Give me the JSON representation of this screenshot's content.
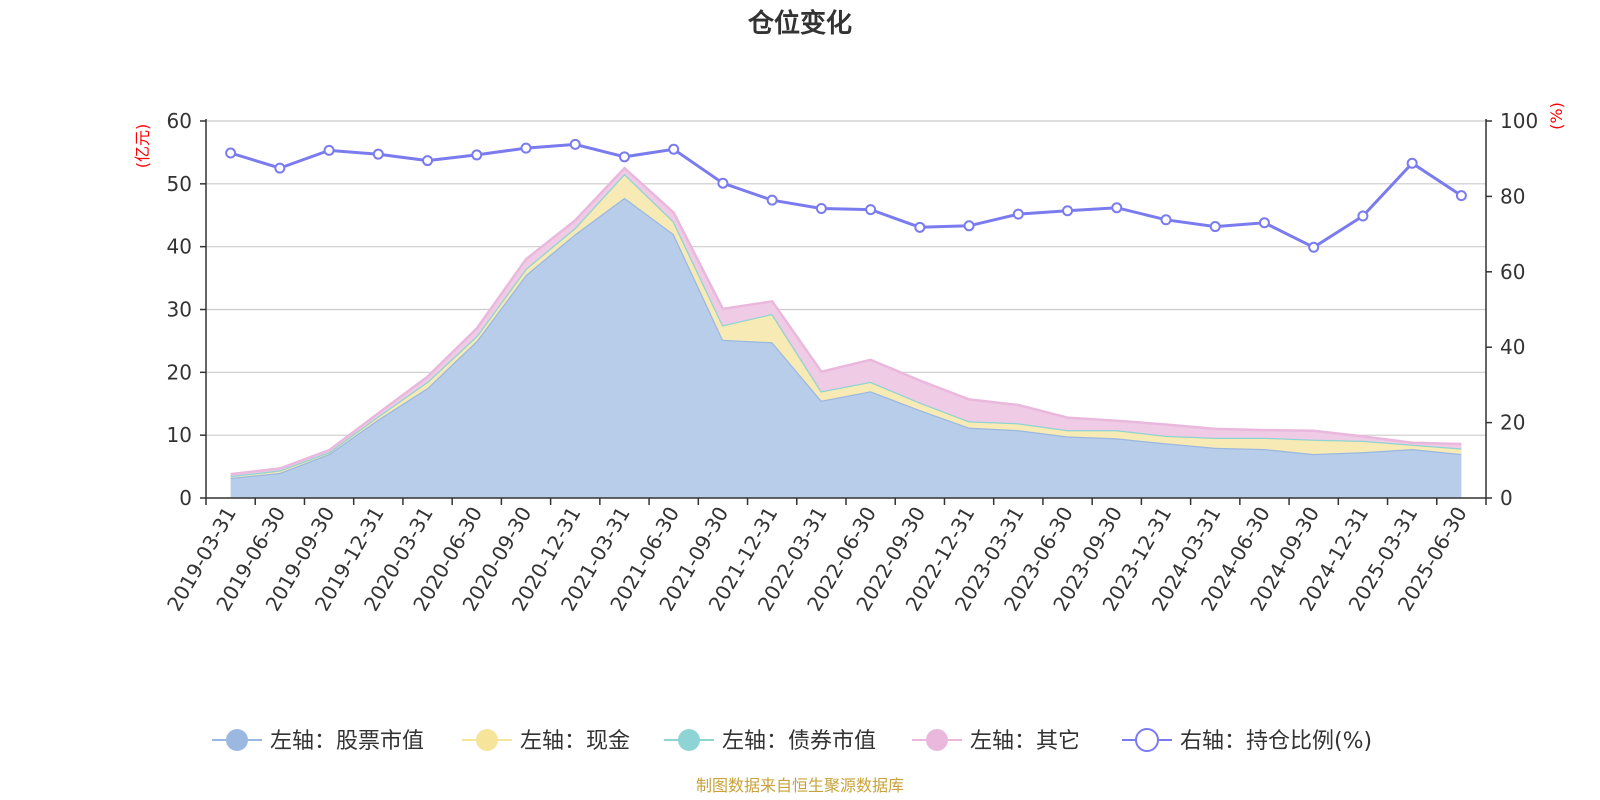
{
  "chart_data": {
    "type": "area",
    "title": "仓位变化",
    "left_axis_unit": "(亿元)",
    "right_axis_unit": "(%)",
    "ylim_left": [
      0,
      60
    ],
    "yticks_left": [
      "0",
      "10",
      "20",
      "30",
      "40",
      "50",
      "60"
    ],
    "ylim_right": [
      0,
      100
    ],
    "yticks_right": [
      "0",
      "20",
      "40",
      "60",
      "80",
      "100"
    ],
    "grid": true,
    "legend_position": "bottom",
    "categories": [
      "2019-03-31",
      "2019-06-30",
      "2019-09-30",
      "2019-12-31",
      "2020-03-31",
      "2020-06-30",
      "2020-09-30",
      "2020-12-31",
      "2021-03-31",
      "2021-06-30",
      "2021-09-30",
      "2021-12-31",
      "2022-03-31",
      "2022-06-30",
      "2022-09-30",
      "2022-12-31",
      "2023-03-31",
      "2023-06-30",
      "2023-09-30",
      "2023-12-31",
      "2024-03-31",
      "2024-06-30",
      "2024-09-30",
      "2024-12-31",
      "2025-03-31",
      "2025-06-30"
    ],
    "series": [
      {
        "name": "左轴：股票市值",
        "axis": "left",
        "stacked": true,
        "color": "#9bb8e0",
        "fill": "#b7cdea",
        "values": [
          3.2,
          4.0,
          7.0,
          12.5,
          17.5,
          25.0,
          35.5,
          42.0,
          47.8,
          42.0,
          25.2,
          24.8,
          15.5,
          17.0,
          14.0,
          11.2,
          10.8,
          9.8,
          9.5,
          8.7,
          8.0,
          7.8,
          7.0,
          7.3,
          7.8,
          7.0
        ]
      },
      {
        "name": "左轴：现金",
        "axis": "left",
        "stacked": true,
        "color": "#f5e49a",
        "fill": "#f7eab5",
        "values": [
          0.3,
          0.4,
          0.3,
          0.5,
          1.0,
          0.8,
          1.0,
          1.0,
          3.8,
          2.0,
          2.3,
          4.5,
          1.5,
          1.5,
          1.2,
          1.0,
          1.1,
          1.0,
          1.3,
          1.2,
          1.6,
          1.8,
          2.3,
          1.8,
          0.7,
          0.9
        ]
      },
      {
        "name": "左轴：债券市值",
        "axis": "left",
        "stacked": true,
        "color": "#8fd4d4",
        "fill": "#b5e4e4",
        "values": [
          0,
          0,
          0,
          0,
          0,
          0,
          0,
          0,
          0,
          0,
          0,
          0,
          0,
          0,
          0,
          0,
          0,
          0,
          0,
          0,
          0,
          0,
          0,
          0,
          0,
          0
        ]
      },
      {
        "name": "左轴：其它",
        "axis": "left",
        "stacked": true,
        "color": "#e9b8dc",
        "fill": "#efcbe5",
        "values": [
          0.3,
          0.3,
          0.3,
          0.5,
          0.8,
          1.2,
          1.5,
          1.2,
          0.9,
          1.4,
          2.6,
          2.0,
          3.1,
          3.5,
          3.5,
          3.5,
          2.9,
          2.0,
          1.5,
          1.8,
          1.4,
          1.2,
          1.4,
          0.7,
          0.3,
          0.7
        ]
      },
      {
        "name": "右轴：持仓比例(%)",
        "axis": "right",
        "type": "line",
        "color": "#7b7bf0",
        "values": [
          91.5,
          87.5,
          92.2,
          91.2,
          89.5,
          91.0,
          92.8,
          93.8,
          90.5,
          92.5,
          83.5,
          79.0,
          76.8,
          76.5,
          71.8,
          72.2,
          75.3,
          76.2,
          77.0,
          73.8,
          72.0,
          73.0,
          66.5,
          74.8,
          88.8,
          80.2
        ]
      }
    ]
  },
  "source_text": "制图数据来自恒生聚源数据库"
}
